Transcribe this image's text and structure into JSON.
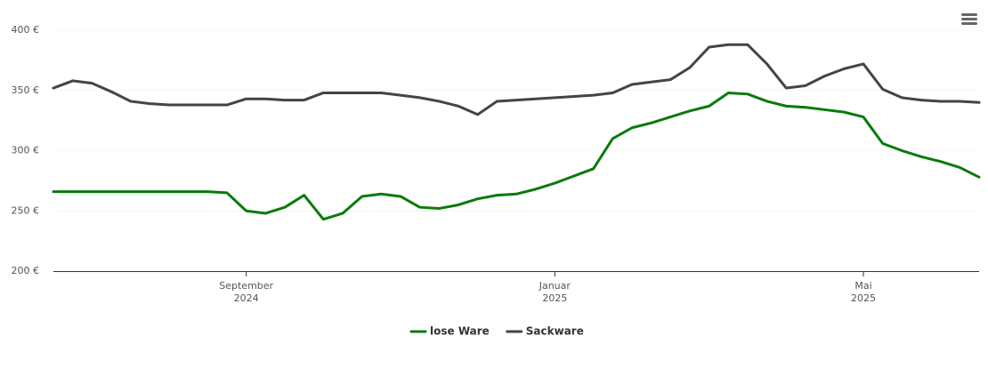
{
  "chart_data": {
    "type": "line",
    "categories": [
      null,
      null,
      null,
      null,
      null,
      null,
      null,
      null,
      null,
      null,
      "September 2024",
      null,
      null,
      null,
      null,
      null,
      null,
      null,
      null,
      null,
      null,
      null,
      null,
      null,
      null,
      null,
      "Januar 2025",
      null,
      null,
      null,
      null,
      null,
      null,
      null,
      null,
      null,
      null,
      null,
      null,
      null,
      null,
      null,
      "Mai 2025",
      null,
      null,
      null,
      null,
      null,
      null
    ],
    "series": [
      {
        "name": "lose Ware",
        "color": "#0a7a0a",
        "values": [
          266,
          266,
          266,
          266,
          266,
          266,
          266,
          266,
          266,
          265,
          250,
          248,
          253,
          263,
          243,
          248,
          262,
          264,
          262,
          253,
          252,
          255,
          260,
          263,
          264,
          268,
          273,
          279,
          285,
          310,
          319,
          323,
          328,
          333,
          337,
          348,
          347,
          341,
          337,
          336,
          334,
          332,
          328,
          306,
          300,
          295,
          291,
          286,
          278
        ]
      },
      {
        "name": "Sackware",
        "color": "#444444",
        "values": [
          352,
          358,
          356,
          349,
          341,
          339,
          338,
          338,
          338,
          338,
          343,
          343,
          342,
          342,
          348,
          348,
          348,
          348,
          346,
          344,
          341,
          337,
          330,
          341,
          342,
          343,
          344,
          345,
          346,
          348,
          355,
          357,
          359,
          369,
          386,
          388,
          388,
          372,
          352,
          354,
          362,
          368,
          372,
          351,
          344,
          342,
          341,
          341,
          340
        ]
      }
    ],
    "ylim": [
      200,
      400
    ],
    "yticks": [
      {
        "value": 200,
        "label": "200 €"
      },
      {
        "value": 250,
        "label": "250 €"
      },
      {
        "value": 300,
        "label": "300 €"
      },
      {
        "value": 350,
        "label": "350 €"
      },
      {
        "value": 400,
        "label": "400 €"
      }
    ],
    "grid": true,
    "legend": "bottom"
  }
}
